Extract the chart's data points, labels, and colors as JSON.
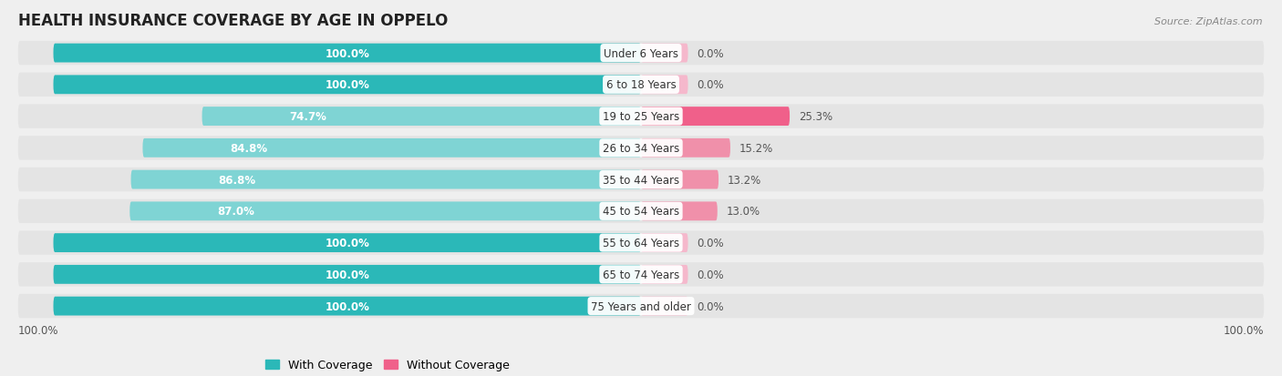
{
  "title": "HEALTH INSURANCE COVERAGE BY AGE IN OPPELO",
  "source": "Source: ZipAtlas.com",
  "categories": [
    "Under 6 Years",
    "6 to 18 Years",
    "19 to 25 Years",
    "26 to 34 Years",
    "35 to 44 Years",
    "45 to 54 Years",
    "55 to 64 Years",
    "65 to 74 Years",
    "75 Years and older"
  ],
  "with_coverage": [
    100.0,
    100.0,
    74.7,
    84.8,
    86.8,
    87.0,
    100.0,
    100.0,
    100.0
  ],
  "without_coverage": [
    0.0,
    0.0,
    25.3,
    15.2,
    13.2,
    13.0,
    0.0,
    0.0,
    0.0
  ],
  "color_teal_full": "#2bb8b8",
  "color_teal_partial": "#7fd4d4",
  "color_pink_strong": "#f0608a",
  "color_pink_mid": "#f090aa",
  "color_pink_light": "#f5b8cc",
  "bg_color": "#efefef",
  "row_bg_color": "#e4e4e4",
  "title_fontsize": 12,
  "label_fontsize": 8.5,
  "source_fontsize": 8,
  "legend_fontsize": 9
}
